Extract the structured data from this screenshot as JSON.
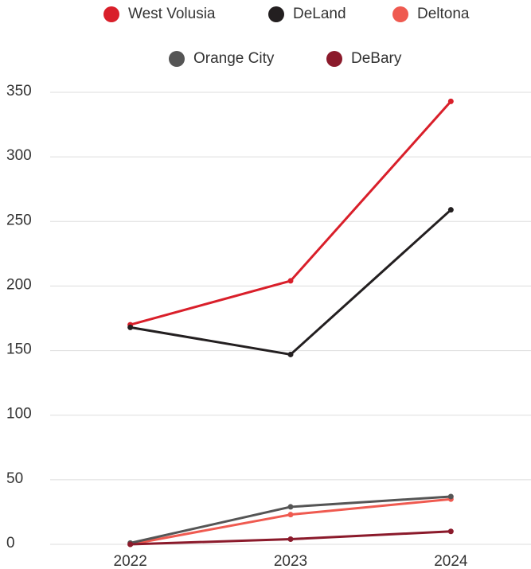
{
  "chart_data": {
    "type": "line",
    "categories": [
      "2022",
      "2023",
      "2024"
    ],
    "series": [
      {
        "name": "West Volusia",
        "color": "#d91f2a",
        "values": [
          170,
          204,
          343
        ]
      },
      {
        "name": "DeLand",
        "color": "#231f20",
        "values": [
          168,
          147,
          259
        ]
      },
      {
        "name": "Deltona",
        "color": "#ef5a50",
        "values": [
          0,
          23,
          35
        ]
      },
      {
        "name": "Orange City",
        "color": "#555555",
        "values": [
          1,
          29,
          37
        ]
      },
      {
        "name": "DeBary",
        "color": "#8b1a2b",
        "values": [
          0,
          4,
          10
        ]
      }
    ],
    "ylim": [
      0,
      350
    ],
    "yticks": [
      0,
      50,
      100,
      150,
      200,
      250,
      300,
      350
    ],
    "grid": true
  }
}
